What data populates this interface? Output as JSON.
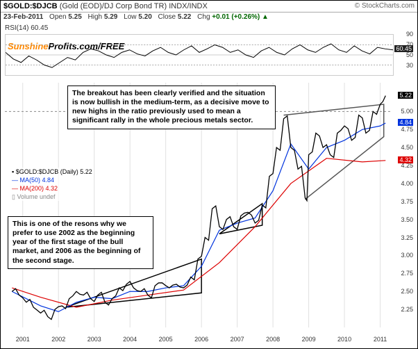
{
  "header": {
    "ticker": "$GOLD:$DJCB",
    "description": "(Gold (EOD)/DJ Corp Bond TR)",
    "index_label": "INDX/INDX",
    "attribution": "© StockCharts.com"
  },
  "ohlc": {
    "date": "23-Feb-2011",
    "open_label": "Open",
    "open": "5.25",
    "high_label": "High",
    "high": "5.29",
    "low_label": "Low",
    "low": "5.20",
    "close_label": "Close",
    "close": "5.22",
    "chg_label": "Chg",
    "chg": "+0.01 (+0.26%)",
    "chg_arrow": "▲"
  },
  "rsi": {
    "label": "RSI(14) 60.45",
    "value_badge": "60.45",
    "badge_color": "#222222",
    "ylim": [
      10,
      90
    ],
    "ticks": [
      30,
      50,
      70,
      90
    ],
    "bands": [
      30,
      70
    ],
    "line_color": "#000000",
    "points": [
      [
        0,
        55
      ],
      [
        2,
        42
      ],
      [
        4,
        35
      ],
      [
        6,
        48
      ],
      [
        8,
        40
      ],
      [
        10,
        30
      ],
      [
        12,
        25
      ],
      [
        14,
        35
      ],
      [
        16,
        45
      ],
      [
        18,
        40
      ],
      [
        20,
        55
      ],
      [
        22,
        62
      ],
      [
        24,
        58
      ],
      [
        26,
        50
      ],
      [
        28,
        45
      ],
      [
        30,
        55
      ],
      [
        32,
        60
      ],
      [
        34,
        52
      ],
      [
        36,
        48
      ],
      [
        38,
        58
      ],
      [
        40,
        65
      ],
      [
        42,
        55
      ],
      [
        44,
        50
      ],
      [
        46,
        60
      ],
      [
        48,
        68
      ],
      [
        50,
        55
      ],
      [
        52,
        62
      ],
      [
        54,
        70
      ],
      [
        56,
        65
      ],
      [
        58,
        55
      ],
      [
        60,
        60
      ],
      [
        62,
        50
      ],
      [
        64,
        45
      ],
      [
        66,
        58
      ],
      [
        68,
        65
      ],
      [
        70,
        55
      ],
      [
        72,
        50
      ],
      [
        74,
        62
      ],
      [
        76,
        70
      ],
      [
        78,
        60
      ],
      [
        80,
        55
      ],
      [
        82,
        65
      ],
      [
        84,
        72
      ],
      [
        86,
        60
      ],
      [
        88,
        55
      ],
      [
        90,
        68
      ],
      [
        92,
        58
      ],
      [
        94,
        52
      ],
      [
        96,
        65
      ],
      [
        98,
        62
      ],
      [
        100,
        60
      ]
    ]
  },
  "legend": {
    "symbol": "$GOLD:$DJCB (Daily) 5.22",
    "symbol_color": "#000000",
    "ma50": "MA(50) 4.84",
    "ma50_color": "#0033dd",
    "ma200": "MA(200) 4.32",
    "ma200_color": "#dd0000",
    "volume": "Volume undef",
    "volume_color": "#888888"
  },
  "watermark": {
    "sun": "Sunshine",
    "rest": "Profits.com/FREE"
  },
  "annotations": {
    "top_box": "The breakout has been clearly verified and the situation is now bullish in the medium-term, as a decisive move to new highs in the ratio previously used to mean a significant rally in the whole precious metals sector.",
    "bottom_box": "This is one of the resons why we prefer to use 2002 as the beginning year of the first stage of the bull market, and 2006 as the beginning of the second stage."
  },
  "main": {
    "ylim": [
      2.0,
      5.4
    ],
    "yticks": [
      2.25,
      2.5,
      2.75,
      3.0,
      3.25,
      3.5,
      3.75,
      4.0,
      4.25,
      4.5,
      4.75,
      5.0
    ],
    "ytick_labels": [
      "2.25",
      "2.50",
      "2.75",
      "3.00",
      "3.25",
      "3.50",
      "3.75",
      "4.00",
      "4.25",
      "4.50",
      "4.75",
      "5.00"
    ],
    "xticks": [
      2001,
      2002,
      2003,
      2004,
      2005,
      2006,
      2007,
      2008,
      2009,
      2010,
      2011
    ],
    "xlim": [
      2000.5,
      2011.3
    ],
    "price_color": "#000000",
    "ma50_color": "#0033dd",
    "ma200_color": "#dd0000",
    "grid_color": "#e0e0e0",
    "price_badge": "5.22",
    "price_badge_color": "#000000",
    "ma50_badge": "4.84",
    "ma50_badge_color": "#0033dd",
    "ma200_badge": "4.32",
    "ma200_badge_color": "#dd0000",
    "price_points": [
      [
        2000.7,
        2.5
      ],
      [
        2000.9,
        2.45
      ],
      [
        2001.1,
        2.35
      ],
      [
        2001.3,
        2.28
      ],
      [
        2001.5,
        2.2
      ],
      [
        2001.7,
        2.15
      ],
      [
        2001.9,
        2.25
      ],
      [
        2002.1,
        2.3
      ],
      [
        2002.3,
        2.4
      ],
      [
        2002.5,
        2.5
      ],
      [
        2002.7,
        2.45
      ],
      [
        2002.9,
        2.4
      ],
      [
        2003.1,
        2.45
      ],
      [
        2003.3,
        2.35
      ],
      [
        2003.5,
        2.4
      ],
      [
        2003.7,
        2.55
      ],
      [
        2003.9,
        2.6
      ],
      [
        2004.1,
        2.55
      ],
      [
        2004.3,
        2.5
      ],
      [
        2004.5,
        2.45
      ],
      [
        2004.7,
        2.58
      ],
      [
        2004.9,
        2.62
      ],
      [
        2005.1,
        2.55
      ],
      [
        2005.3,
        2.6
      ],
      [
        2005.5,
        2.55
      ],
      [
        2005.7,
        2.7
      ],
      [
        2005.9,
        2.95
      ],
      [
        2006.1,
        3.25
      ],
      [
        2006.3,
        3.65
      ],
      [
        2006.5,
        3.4
      ],
      [
        2006.7,
        3.5
      ],
      [
        2006.9,
        3.4
      ],
      [
        2007.1,
        3.55
      ],
      [
        2007.3,
        3.6
      ],
      [
        2007.5,
        3.45
      ],
      [
        2007.7,
        3.7
      ],
      [
        2007.9,
        4.1
      ],
      [
        2008.1,
        4.5
      ],
      [
        2008.3,
        4.9
      ],
      [
        2008.5,
        4.5
      ],
      [
        2008.7,
        4.2
      ],
      [
        2008.9,
        3.8
      ],
      [
        2009.0,
        4.4
      ],
      [
        2009.2,
        4.7
      ],
      [
        2009.4,
        4.5
      ],
      [
        2009.6,
        4.4
      ],
      [
        2009.8,
        4.7
      ],
      [
        2010.0,
        4.8
      ],
      [
        2010.2,
        4.6
      ],
      [
        2010.4,
        4.95
      ],
      [
        2010.6,
        4.7
      ],
      [
        2010.8,
        5.0
      ],
      [
        2011.0,
        5.1
      ],
      [
        2011.15,
        5.22
      ]
    ],
    "ma50_points": [
      [
        2000.7,
        2.5
      ],
      [
        2001.5,
        2.3
      ],
      [
        2002.0,
        2.22
      ],
      [
        2002.5,
        2.35
      ],
      [
        2003.0,
        2.42
      ],
      [
        2003.5,
        2.4
      ],
      [
        2004.0,
        2.5
      ],
      [
        2004.5,
        2.5
      ],
      [
        2005.0,
        2.55
      ],
      [
        2005.5,
        2.58
      ],
      [
        2006.0,
        2.85
      ],
      [
        2006.5,
        3.35
      ],
      [
        2007.0,
        3.45
      ],
      [
        2007.5,
        3.52
      ],
      [
        2008.0,
        3.9
      ],
      [
        2008.5,
        4.55
      ],
      [
        2009.0,
        4.2
      ],
      [
        2009.5,
        4.5
      ],
      [
        2010.0,
        4.6
      ],
      [
        2010.5,
        4.75
      ],
      [
        2011.0,
        4.8
      ],
      [
        2011.15,
        4.84
      ]
    ],
    "ma200_points": [
      [
        2000.7,
        2.55
      ],
      [
        2001.5,
        2.42
      ],
      [
        2002.5,
        2.28
      ],
      [
        2003.5,
        2.38
      ],
      [
        2004.5,
        2.45
      ],
      [
        2005.5,
        2.52
      ],
      [
        2006.5,
        2.9
      ],
      [
        2007.5,
        3.4
      ],
      [
        2008.5,
        4.0
      ],
      [
        2009.5,
        4.35
      ],
      [
        2010.5,
        4.3
      ],
      [
        2011.15,
        4.32
      ]
    ],
    "triangles": [
      {
        "points": [
          [
            2002.2,
            2.28
          ],
          [
            2006.0,
            2.95
          ],
          [
            2006.0,
            2.48
          ],
          [
            2002.2,
            2.28
          ]
        ],
        "stroke": "#000000"
      },
      {
        "points": [
          [
            2006.5,
            3.3
          ],
          [
            2007.7,
            3.72
          ],
          [
            2007.7,
            3.42
          ],
          [
            2006.5,
            3.3
          ]
        ],
        "stroke": "#000000"
      },
      {
        "points": [
          [
            2008.9,
            3.78
          ],
          [
            2011.1,
            4.65
          ],
          [
            2011.1,
            5.1
          ],
          [
            2008.3,
            4.95
          ]
        ],
        "stroke": "#555555"
      }
    ],
    "five_line": "5.00"
  }
}
